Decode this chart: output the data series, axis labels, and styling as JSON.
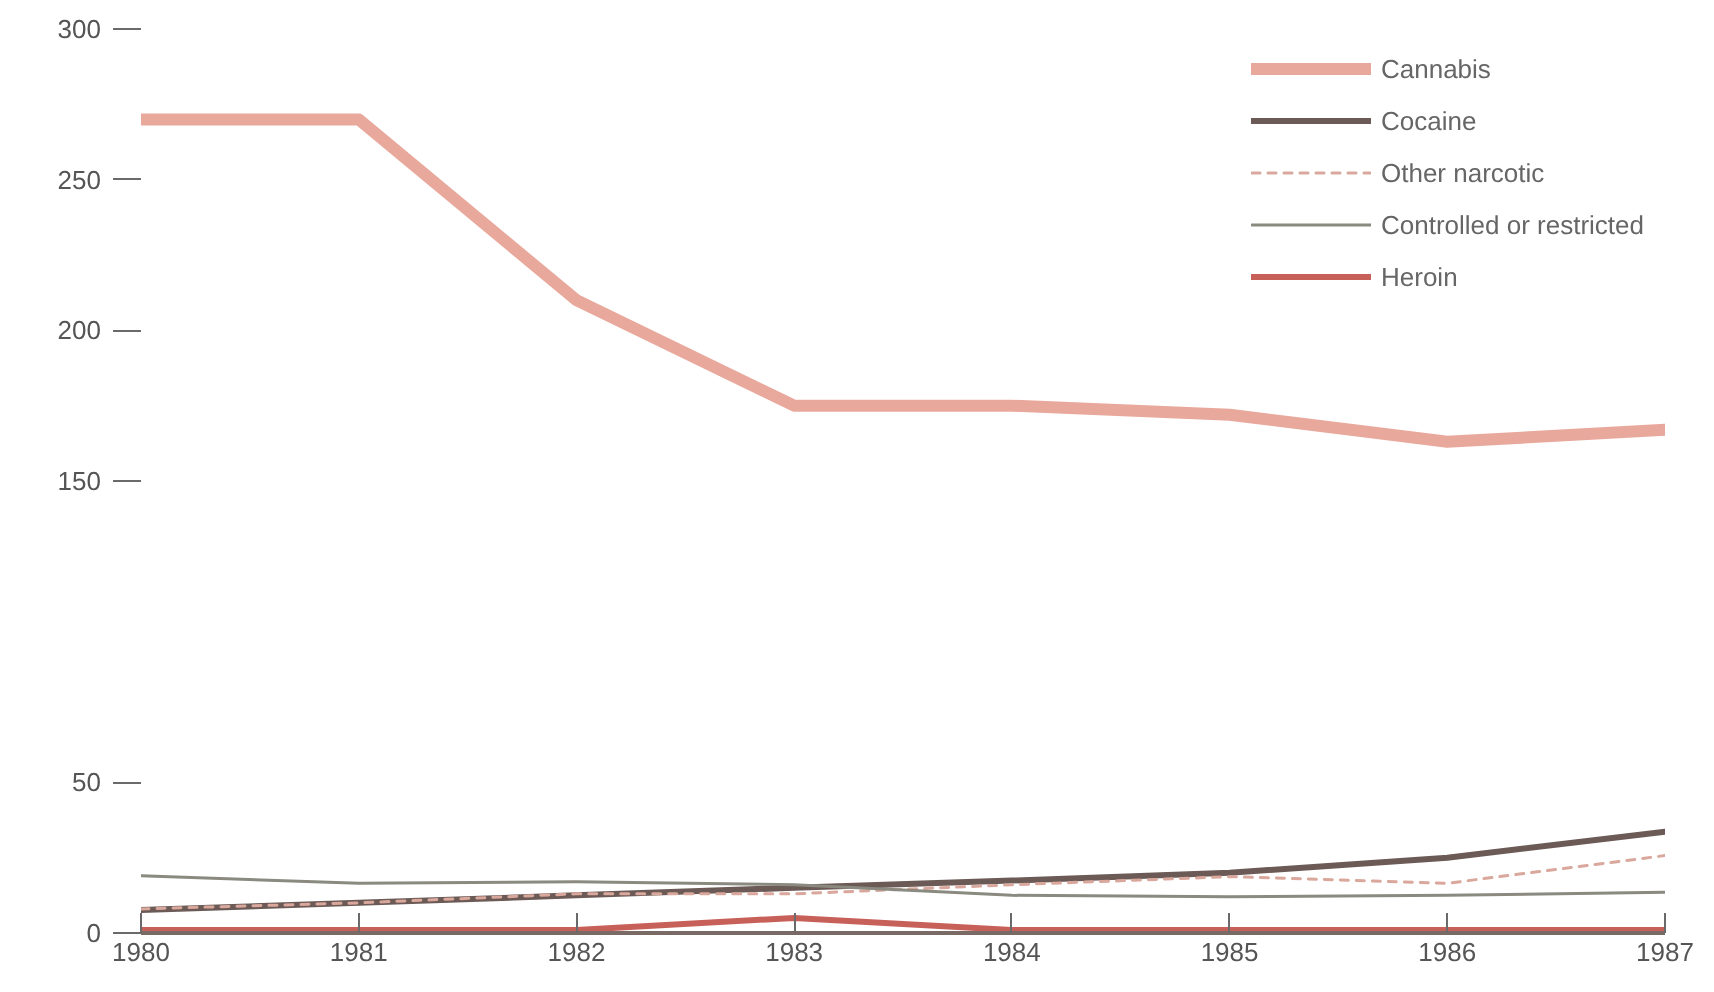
{
  "chart_data": {
    "type": "line",
    "x": [
      1980,
      1981,
      1982,
      1983,
      1984,
      1985,
      1986,
      1987
    ],
    "xlim": [
      1980,
      1987
    ],
    "ylim": [
      0,
      300
    ],
    "yticks": [
      0,
      50,
      150,
      200,
      250,
      300
    ],
    "xticks": [
      1980,
      1981,
      1982,
      1983,
      1984,
      1985,
      1986,
      1987
    ],
    "grid": false,
    "legend": "top right",
    "line_style": "solid",
    "series": [
      {
        "name": "Cannabis",
        "color": "#e9a89c",
        "values": [
          270,
          270,
          210,
          175,
          175,
          172,
          163,
          167
        ]
      },
      {
        "name": "Cocaine",
        "color": "#6b5a55",
        "values": [
          7.6,
          10,
          12.5,
          15,
          17.4,
          20,
          25,
          33.6
        ]
      },
      {
        "name": "Other narcotic",
        "color": "#d9a79c",
        "line_style": "dashed",
        "values": [
          8,
          10,
          13,
          13,
          16,
          18.7,
          16.5,
          25.7
        ]
      },
      {
        "name": "Controlled or restricted",
        "color": "#8a8a80",
        "values": [
          19,
          16.5,
          17,
          16,
          12.5,
          12,
          12.5,
          13.5
        ]
      },
      {
        "name": "Heroin",
        "color": "#c8605a",
        "values": [
          1,
          1,
          1,
          5,
          1,
          1,
          1,
          1
        ]
      }
    ]
  }
}
